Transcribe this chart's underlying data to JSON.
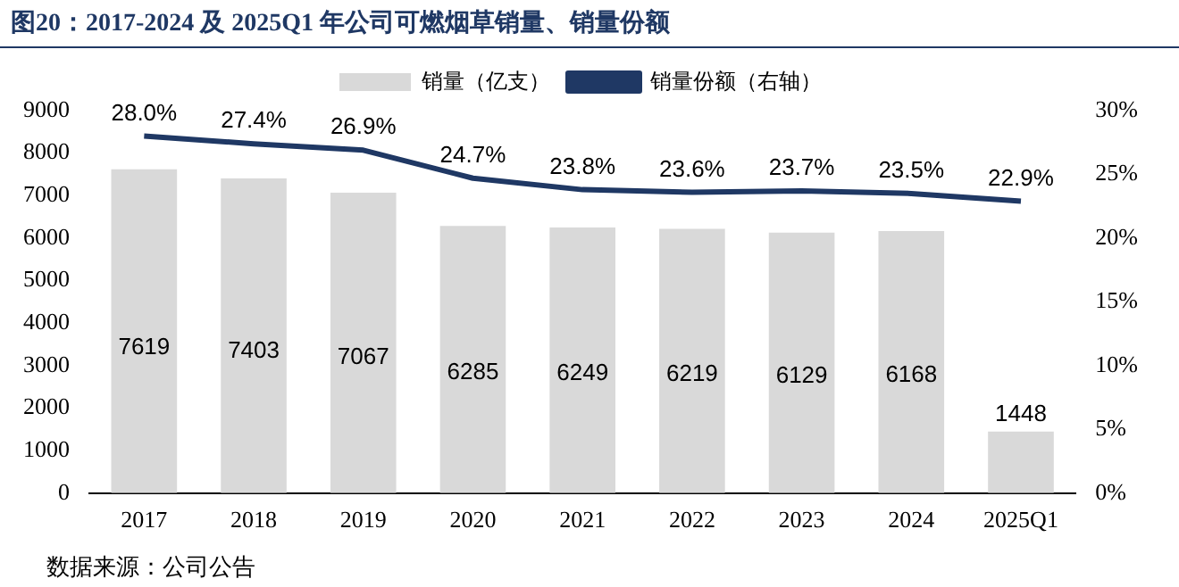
{
  "chart_data": {
    "type": "bar",
    "title": "图20：2017-2024 及 2025Q1 年公司可燃烟草销量、销量份额",
    "categories": [
      "2017",
      "2018",
      "2019",
      "2020",
      "2021",
      "2022",
      "2023",
      "2024",
      "2025Q1"
    ],
    "series": [
      {
        "name": "销量（亿支）",
        "color": "#d9d9d9",
        "values": [
          7619,
          7403,
          7067,
          6285,
          6249,
          6219,
          6129,
          6168,
          1448
        ],
        "value_labels": [
          "7619",
          "7403",
          "7067",
          "6285",
          "6249",
          "6219",
          "6129",
          "6168",
          "1448"
        ]
      },
      {
        "name": "销量份额（右轴）",
        "type": "line",
        "axis": "y2",
        "color": "#1f3864",
        "values": [
          28.0,
          27.4,
          26.9,
          24.7,
          23.8,
          23.6,
          23.7,
          23.5,
          22.9
        ],
        "value_labels": [
          "28.0%",
          "27.4%",
          "26.9%",
          "24.7%",
          "23.8%",
          "23.6%",
          "23.7%",
          "23.5%",
          "22.9%"
        ]
      }
    ],
    "ylim": [
      0,
      9000
    ],
    "yticks": [
      0,
      1000,
      2000,
      3000,
      4000,
      5000,
      6000,
      7000,
      8000,
      9000
    ],
    "y2lim": [
      0,
      30
    ],
    "y2ticks": [
      {
        "value": 0,
        "label": "0%"
      },
      {
        "value": 5,
        "label": "5%"
      },
      {
        "value": 10,
        "label": "10%"
      },
      {
        "value": 15,
        "label": "15%"
      },
      {
        "value": 20,
        "label": "20%"
      },
      {
        "value": 25,
        "label": "25%"
      },
      {
        "value": 30,
        "label": "30%"
      }
    ],
    "grid": false,
    "legend": "top",
    "marker": "none",
    "line_style": "solid",
    "annotations": [
      "数据来源：公司公告"
    ]
  }
}
